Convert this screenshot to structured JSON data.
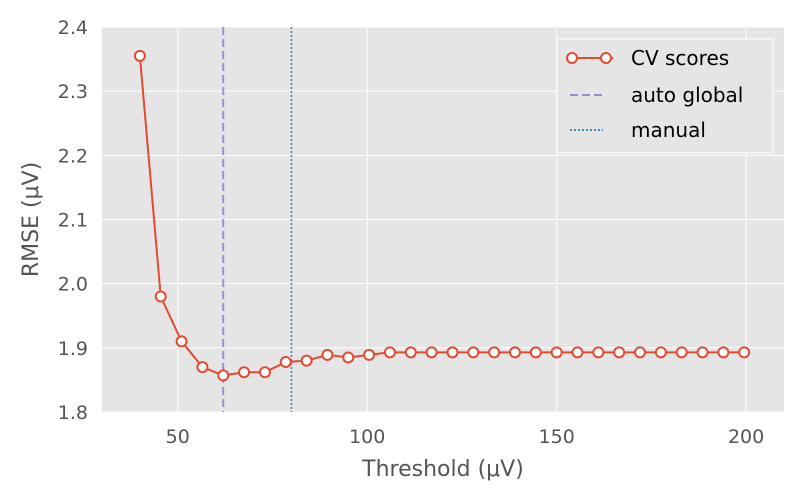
{
  "chart_data": {
    "type": "line",
    "title": "",
    "xlabel": "Threshold (μV)",
    "ylabel": "RMSE (μV)",
    "xlim": [
      30,
      210
    ],
    "ylim": [
      1.8,
      2.4
    ],
    "xticks": [
      50,
      100,
      150,
      200
    ],
    "yticks": [
      1.8,
      1.9,
      2.0,
      2.1,
      2.2,
      2.3,
      2.4
    ],
    "grid": true,
    "legend_position": "top-right",
    "series": [
      {
        "name": "CV scores",
        "color": "#E24A33",
        "marker": "circle-open",
        "x": [
          40,
          45.5,
          51,
          56.5,
          62,
          67.5,
          73,
          78.5,
          84,
          89.5,
          95,
          100.5,
          106,
          111.5,
          117,
          122.5,
          128,
          133.5,
          139,
          144.5,
          150,
          155.5,
          161,
          166.5,
          172,
          177.5,
          183,
          188.5,
          194,
          199.5
        ],
        "y": [
          2.355,
          1.98,
          1.91,
          1.87,
          1.857,
          1.862,
          1.862,
          1.878,
          1.88,
          1.889,
          1.885,
          1.889,
          1.893,
          1.893,
          1.893,
          1.893,
          1.893,
          1.893,
          1.893,
          1.893,
          1.893,
          1.893,
          1.893,
          1.893,
          1.893,
          1.893,
          1.893,
          1.893,
          1.893,
          1.893
        ]
      }
    ],
    "vlines": [
      {
        "name": "auto global",
        "x": 62,
        "color": "#988ED5",
        "style": "dashed"
      },
      {
        "name": "manual",
        "x": 80,
        "color": "#348ABD",
        "style": "dotted"
      }
    ],
    "background_color": "#E5E5E5",
    "grid_color": "#FFFFFF"
  }
}
